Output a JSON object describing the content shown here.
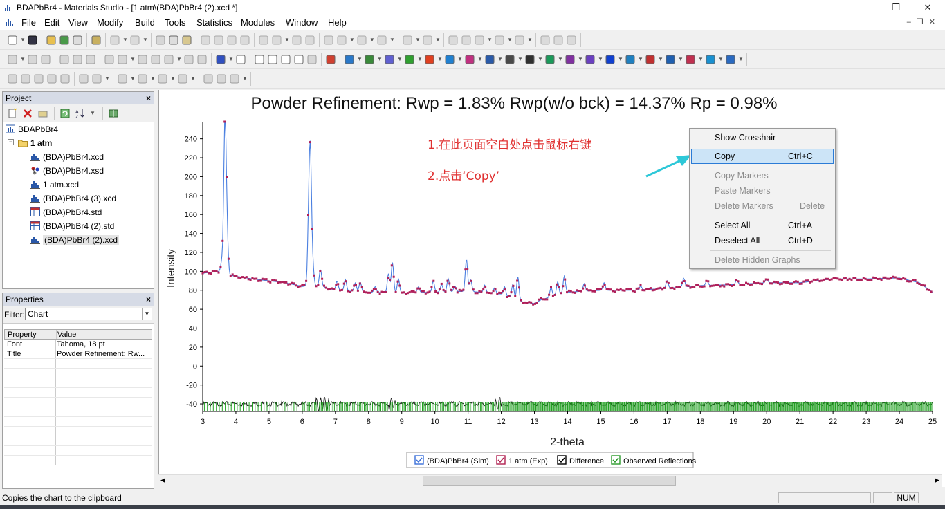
{
  "window": {
    "title": "BDAPbBr4 - Materials Studio - [1 atm\\(BDA)PbBr4 (2).xcd *]",
    "controls": {
      "minimize": "—",
      "restore": "❐",
      "close": "✕"
    }
  },
  "menu": {
    "items": [
      "File",
      "Edit",
      "View",
      "Modify",
      "Build",
      "Tools",
      "Statistics",
      "Modules",
      "Window",
      "Help"
    ],
    "mdi_controls": "–❐✕"
  },
  "project": {
    "title": "Project",
    "close": "×",
    "root": "BDAPbBr4",
    "folder": "1 atm",
    "files": [
      {
        "name": "(BDA)PbBr4.xcd",
        "icon": "xcd-chart-icon"
      },
      {
        "name": "(BDA)PbBr4.xsd",
        "icon": "xsd-structure-icon"
      },
      {
        "name": "1 atm.xcd",
        "icon": "xcd-chart-icon"
      },
      {
        "name": "(BDA)PbBr4 (3).xcd",
        "icon": "xcd-chart-icon"
      },
      {
        "name": "(BDA)PbBr4.std",
        "icon": "std-table-icon"
      },
      {
        "name": "(BDA)PbBr4 (2).std",
        "icon": "std-table-icon"
      },
      {
        "name": "(BDA)PbBr4 (2).xcd",
        "icon": "xcd-chart-icon"
      }
    ]
  },
  "properties": {
    "title": "Properties",
    "close": "×",
    "filter_label": "Filter:",
    "filter_value": "Chart",
    "headers": [
      "Property",
      "Value"
    ],
    "rows": [
      {
        "property": "Font",
        "value": "Tahoma, 18 pt"
      },
      {
        "property": "Title",
        "value": "Powder Refinement:  Rw..."
      }
    ]
  },
  "chart_data": {
    "type": "line",
    "title": "Powder Refinement:  Rwp = 1.83%   Rwp(w/o bck) = 14.37%   Rp = 0.98%",
    "xlabel": "2-theta",
    "ylabel": "Intensity",
    "xlim": [
      3,
      25
    ],
    "ylim": [
      -48,
      258
    ],
    "x_ticks": [
      3,
      4,
      5,
      6,
      7,
      8,
      9,
      10,
      11,
      12,
      13,
      14,
      15,
      16,
      17,
      18,
      19,
      20,
      21,
      22,
      23,
      24,
      25
    ],
    "y_ticks": [
      -40,
      -20,
      0,
      20,
      40,
      60,
      80,
      100,
      120,
      140,
      160,
      180,
      200,
      220,
      240
    ],
    "legend": [
      {
        "name": "(BDA)PbBr4 (Sim)",
        "color": "#3a6fd8"
      },
      {
        "name": "1 atm (Exp)",
        "color": "#b0204f"
      },
      {
        "name": "Difference",
        "color": "#000000"
      },
      {
        "name": "Observed Reflections",
        "color": "#2a9a2a"
      }
    ],
    "series_colors": {
      "sim": "#4a7fe0",
      "exp": "#b0205a",
      "diff": "#111111",
      "refl": "#22a022"
    },
    "baseline": [
      [
        3,
        98
      ],
      [
        3.5,
        100
      ],
      [
        3.8,
        96
      ],
      [
        4.5,
        92
      ],
      [
        5,
        90
      ],
      [
        5.5,
        88
      ],
      [
        6,
        84
      ],
      [
        6.2,
        85
      ],
      [
        6.6,
        84
      ],
      [
        7,
        80
      ],
      [
        8,
        78
      ],
      [
        9,
        77
      ],
      [
        10,
        78
      ],
      [
        11,
        79
      ],
      [
        12,
        76
      ],
      [
        12.6,
        68
      ],
      [
        13,
        66
      ],
      [
        13.2,
        70
      ],
      [
        14,
        78
      ],
      [
        15,
        80
      ],
      [
        16,
        80
      ],
      [
        17,
        82
      ],
      [
        18,
        85
      ],
      [
        19,
        86
      ],
      [
        20,
        88
      ],
      [
        21,
        88
      ],
      [
        22,
        92
      ],
      [
        23,
        92
      ],
      [
        24,
        93
      ],
      [
        24.6,
        88
      ],
      [
        25,
        78
      ]
    ],
    "peaks": [
      [
        3.58,
        12
      ],
      [
        3.67,
        160
      ],
      [
        3.73,
        45
      ],
      [
        6.2,
        70
      ],
      [
        6.25,
        120
      ],
      [
        6.32,
        18
      ],
      [
        6.55,
        18
      ],
      [
        7.05,
        10
      ],
      [
        7.3,
        12
      ],
      [
        7.6,
        9
      ],
      [
        7.75,
        10
      ],
      [
        8.2,
        6
      ],
      [
        8.6,
        20
      ],
      [
        8.72,
        32
      ],
      [
        8.9,
        15
      ],
      [
        9.5,
        6
      ],
      [
        9.95,
        12
      ],
      [
        10.2,
        8
      ],
      [
        10.4,
        14
      ],
      [
        10.6,
        6
      ],
      [
        10.95,
        34
      ],
      [
        11.08,
        12
      ],
      [
        11.5,
        8
      ],
      [
        11.8,
        6
      ],
      [
        12.1,
        9
      ],
      [
        12.35,
        15
      ],
      [
        12.5,
        25
      ],
      [
        13.5,
        10
      ],
      [
        13.7,
        14
      ],
      [
        13.9,
        18
      ],
      [
        14.5,
        8
      ],
      [
        15.1,
        8
      ],
      [
        16.2,
        4
      ],
      [
        17.0,
        8
      ],
      [
        17.5,
        9
      ],
      [
        18.2,
        5
      ],
      [
        19.1,
        5
      ],
      [
        20.0,
        4
      ]
    ],
    "difference_baseline": -40
  },
  "annotations": {
    "step1": "1.在此页面空白处点击鼠标右键",
    "step2": "2.点击‘Copy’"
  },
  "context_menu": {
    "items": [
      {
        "label": "Show Crosshair",
        "shortcut": "",
        "disabled": false
      },
      {
        "label": "Copy",
        "shortcut": "Ctrl+C",
        "disabled": false,
        "highlighted": true
      },
      {
        "label": "Copy Markers",
        "shortcut": "",
        "disabled": true
      },
      {
        "label": "Paste Markers",
        "shortcut": "",
        "disabled": true
      },
      {
        "label": "Delete Markers",
        "shortcut": "Delete",
        "disabled": true
      },
      {
        "label": "Select All",
        "shortcut": "Ctrl+A",
        "disabled": false
      },
      {
        "label": "Deselect All",
        "shortcut": "Ctrl+D",
        "disabled": false
      },
      {
        "label": "Delete Hidden Graphs",
        "shortcut": "",
        "disabled": true
      }
    ]
  },
  "status": {
    "text": "Copies the chart to the clipboard",
    "num": "NUM"
  }
}
